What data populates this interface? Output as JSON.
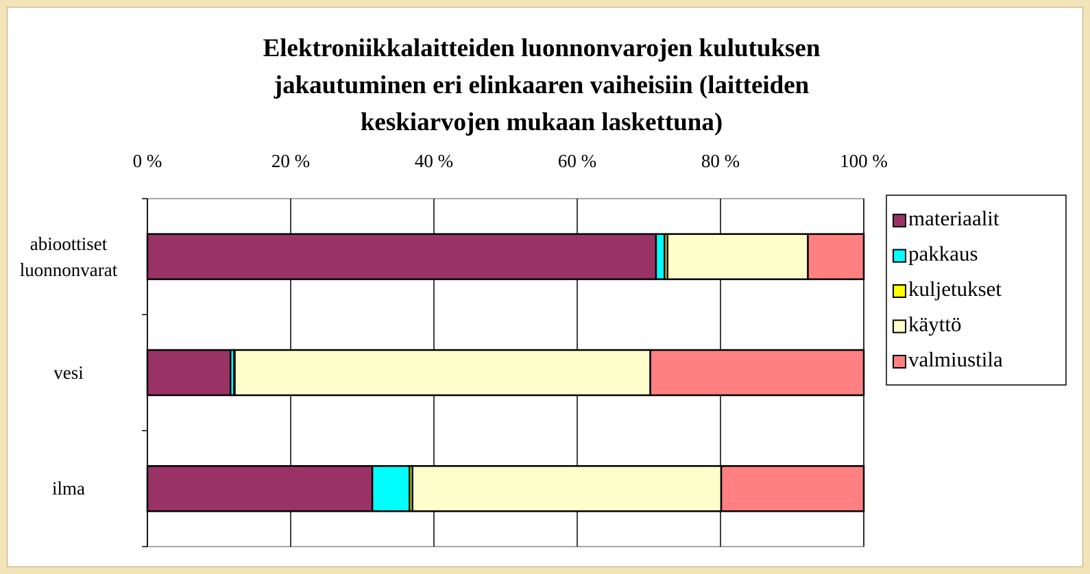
{
  "chart_data": {
    "type": "stacked-bar-horizontal",
    "title": "Elektroniikkalaitteiden luonnonvarojen kulutuksen\njakautuminen eri elinkaaren vaiheisiin (laitteiden\nkeskiarvojen mukaan laskettuna)",
    "categories": [
      "abioottiset\nluonnonvarat",
      "vesi",
      "ilma"
    ],
    "series": [
      {
        "name": "materiaalit",
        "color": "#993366",
        "values": [
          71.0,
          11.6,
          31.4
        ]
      },
      {
        "name": "pakkaus",
        "color": "#00ffff",
        "values": [
          1.2,
          0.5,
          5.2
        ]
      },
      {
        "name": "kuljetukset",
        "color": "#ffff00",
        "values": [
          0.4,
          0.1,
          0.4
        ]
      },
      {
        "name": "käyttö",
        "color": "#ffffcc",
        "values": [
          19.6,
          58.0,
          43.1
        ]
      },
      {
        "name": "valmiustila",
        "color": "#ff8080",
        "values": [
          7.8,
          29.8,
          19.9
        ]
      }
    ],
    "xlim": [
      0,
      100
    ],
    "xticks": [
      {
        "value": 0,
        "label": "0 %"
      },
      {
        "value": 20,
        "label": "20 %"
      },
      {
        "value": 40,
        "label": "40 %"
      },
      {
        "value": 60,
        "label": "60 %"
      },
      {
        "value": 80,
        "label": "80 %"
      },
      {
        "value": 100,
        "label": "100 %"
      }
    ],
    "grid": true,
    "legend": "right"
  }
}
